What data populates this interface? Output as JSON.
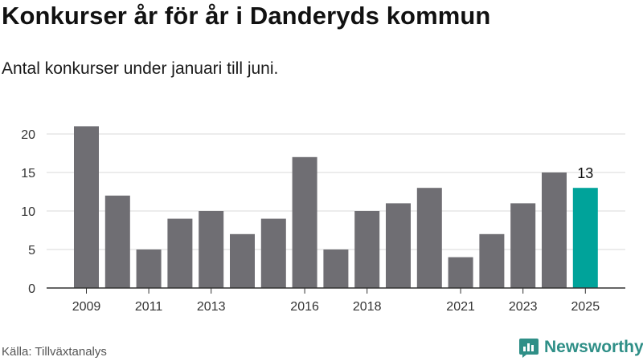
{
  "title": "Konkurser år för år i Danderyds kommun",
  "subtitle": "Antal konkurser under januari till juni.",
  "source": "Källa: Tillväxtanalys",
  "brand": {
    "name": "Newsworthy",
    "icon": "newsworthy-logo-icon"
  },
  "colors": {
    "bar": "#6f6e73",
    "highlight": "#00a39a",
    "grid": "#d9d9d9",
    "axis": "#333333"
  },
  "chart_data": {
    "type": "bar",
    "categories": [
      "2009",
      "2010",
      "2011",
      "2012",
      "2013",
      "2014",
      "2015",
      "2016",
      "2017",
      "2018",
      "2019",
      "2020",
      "2021",
      "2022",
      "2023",
      "2024",
      "2025"
    ],
    "x_tick_labels": [
      "2009",
      "",
      "2011",
      "",
      "2013",
      "",
      "",
      "2016",
      "",
      "2018",
      "",
      "",
      "2021",
      "",
      "2023",
      "",
      "2025"
    ],
    "values": [
      21,
      12,
      5,
      9,
      10,
      7,
      9,
      17,
      5,
      10,
      11,
      13,
      4,
      7,
      11,
      15,
      13
    ],
    "highlight_index": 16,
    "highlight_label": "13",
    "ylim": [
      0,
      21
    ],
    "yticks": [
      0,
      5,
      10,
      15,
      20
    ],
    "grid": true,
    "xlabel": "",
    "ylabel": ""
  }
}
